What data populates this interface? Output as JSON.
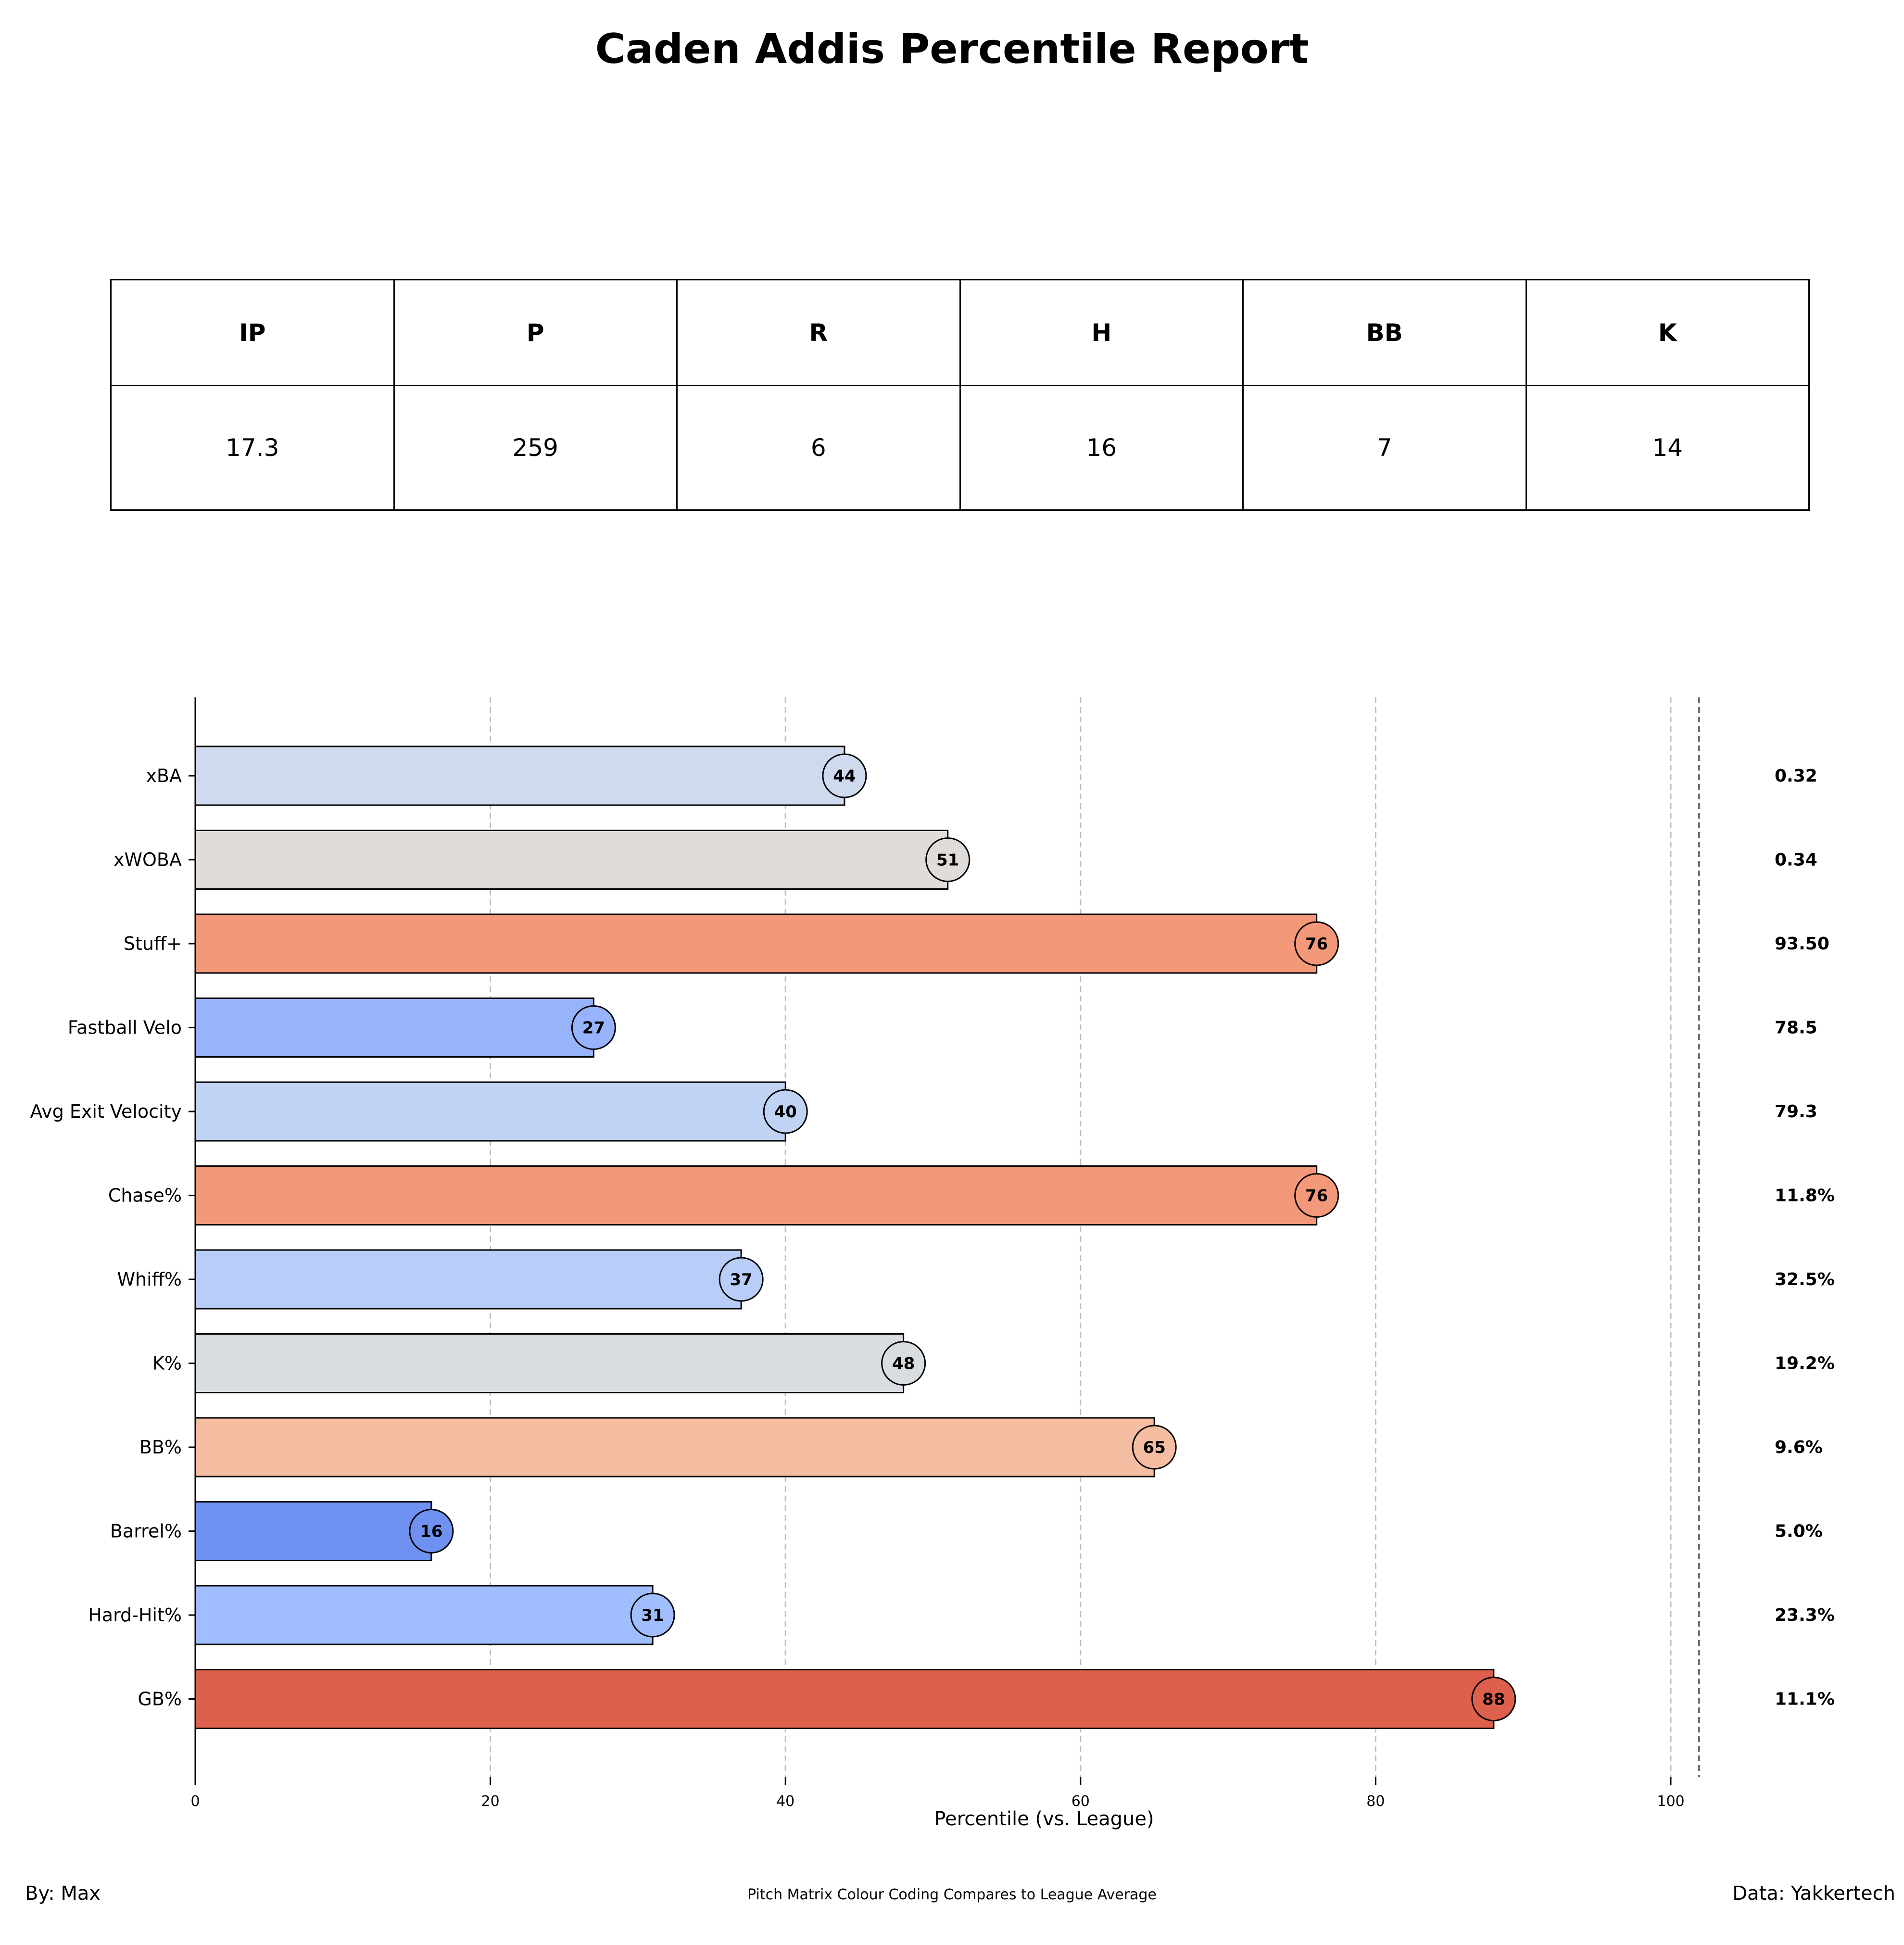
{
  "title": "Caden Addis Percentile Report",
  "stats_table": {
    "headers": [
      "IP",
      "P",
      "R",
      "H",
      "BB",
      "K"
    ],
    "values": [
      "17.3",
      "259",
      "6",
      "16",
      "7",
      "14"
    ]
  },
  "chart_data": {
    "type": "bar",
    "orientation": "horizontal",
    "xlabel": "Percentile (vs. League)",
    "ylabel": "",
    "xlim": [
      0,
      105
    ],
    "xticks": [
      "0",
      "20",
      "40",
      "60",
      "80",
      "100"
    ],
    "grid": "vertical dashed",
    "categories": [
      "xBA",
      "xWOBA",
      "Stuff+",
      "Fastball Velo",
      "Avg Exit Velocity",
      "Chase%",
      "Whiff%",
      "K%",
      "BB%",
      "Barrel%",
      "Hard-Hit%",
      "GB%"
    ],
    "values": [
      44,
      51,
      76,
      27,
      40,
      76,
      37,
      48,
      65,
      16,
      31,
      88
    ],
    "value_labels": [
      "44",
      "51",
      "76",
      "27",
      "40",
      "76",
      "37",
      "48",
      "65",
      "16",
      "31",
      "88"
    ],
    "stat_values": [
      "0.32",
      "0.34",
      "93.50",
      "78.5",
      "79.3",
      "11.8%",
      "32.5%",
      "19.2%",
      "9.6%",
      "5.0%",
      "23.3%",
      "11.1%"
    ],
    "colors": [
      "#cfdaee",
      "#e0dcd9",
      "#f39878",
      "#96b3fb",
      "#c0d3f4",
      "#f39878",
      "#b8cef8",
      "#d9dce1",
      "#f5bda2",
      "#6f92f2",
      "#a0befe",
      "#dd604d"
    ]
  },
  "footer": {
    "left": "By: Max",
    "center": "Pitch Matrix Colour Coding Compares to League Average",
    "right": "Data: Yakkertech"
  }
}
